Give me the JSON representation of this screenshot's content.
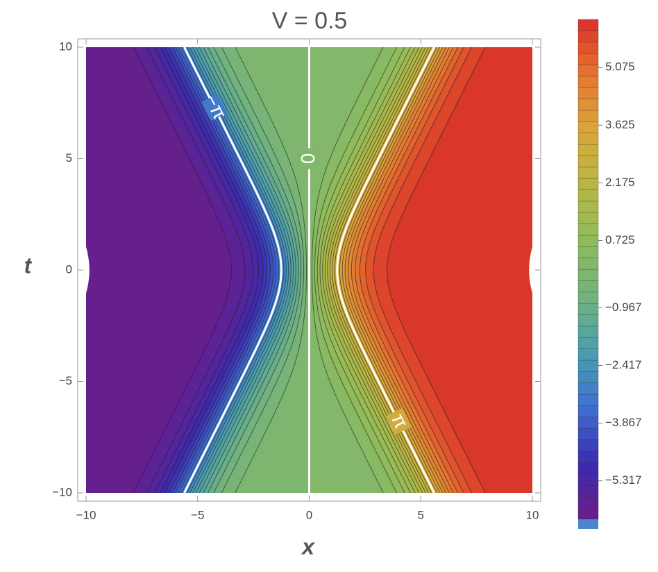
{
  "chart_data": {
    "type": "contour",
    "title": "V = 0.5",
    "V": 0.5,
    "xlabel": "x",
    "ylabel": "t",
    "xlim": [
      -10,
      10
    ],
    "ylim": [
      -10,
      10
    ],
    "xticks": [
      {
        "value": -10,
        "label": "−10"
      },
      {
        "value": -5,
        "label": "−5"
      },
      0,
      5,
      10
    ],
    "yticks": [
      {
        "value": -10,
        "label": "−10"
      },
      {
        "value": -5,
        "label": "−5"
      },
      0,
      5,
      10
    ],
    "clim": [
      -6.283,
      6.283
    ],
    "contour_count": 44,
    "colormap": [
      "#6a1f8a",
      "#3b2bb0",
      "#3f6fd2",
      "#4a9fb0",
      "#72b27e",
      "#8fbb5c",
      "#b7b743",
      "#d9a73b",
      "#e5772f",
      "#d9302b"
    ],
    "colorbar_ticks": [
      5.075,
      3.625,
      2.175,
      0.725,
      {
        "value": -0.967,
        "label": "−0.967"
      },
      {
        "value": -2.417,
        "label": "−2.417"
      },
      {
        "value": -3.867,
        "label": "−3.867"
      },
      {
        "value": -5.317,
        "label": "−5.317"
      }
    ],
    "contour_labels": [
      {
        "level": -3.14159,
        "label": "−π"
      },
      {
        "level": 0,
        "label": "0"
      },
      {
        "level": 3.14159,
        "label": "π"
      }
    ]
  }
}
